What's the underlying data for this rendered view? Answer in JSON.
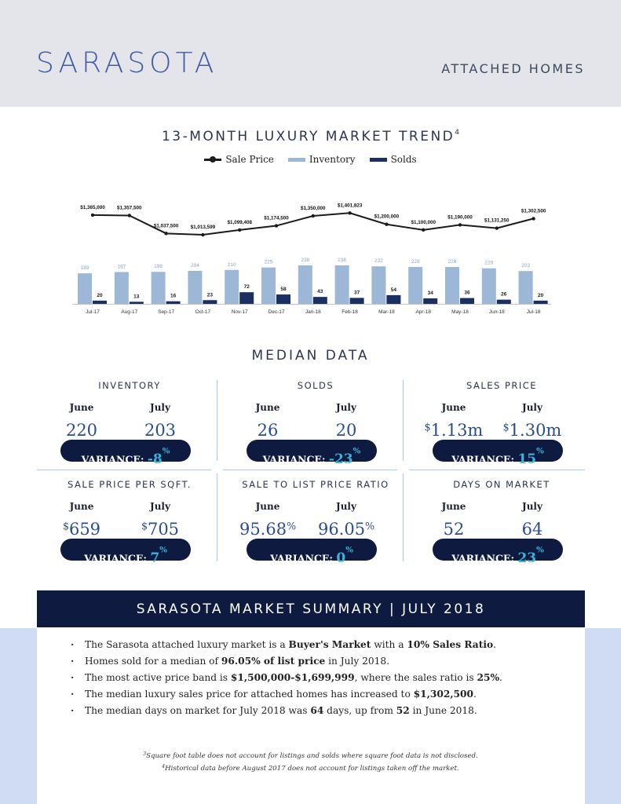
{
  "header": {
    "city": "SARASOTA",
    "segment": "ATTACHED HOMES"
  },
  "trend": {
    "title": "13-MONTH LUXURY MARKET TREND",
    "title_note": "4",
    "legend": {
      "sale_price": "Sale Price",
      "inventory": "Inventory",
      "solds": "Solds"
    }
  },
  "chart_data": {
    "type": "bar",
    "categories": [
      "Jul-17",
      "Aug-17",
      "Sep-17",
      "Oct-17",
      "Nov-17",
      "Dec-17",
      "Jan-18",
      "Feb-18",
      "Mar-18",
      "Apr-18",
      "May-18",
      "Jun-18",
      "Jul-18"
    ],
    "series": [
      {
        "name": "Inventory",
        "type": "bar",
        "values": [
          189,
          197,
          198,
          204,
          210,
          225,
          238,
          238,
          232,
          228,
          228,
          220,
          203
        ]
      },
      {
        "name": "Solds",
        "type": "bar",
        "values": [
          20,
          13,
          16,
          23,
          72,
          58,
          43,
          37,
          54,
          34,
          36,
          26,
          20
        ]
      },
      {
        "name": "Sale Price",
        "type": "line",
        "values": [
          1365000,
          1357500,
          1037500,
          1013599,
          1099408,
          1174500,
          1350000,
          1401823,
          1200000,
          1100000,
          1190000,
          1131250,
          1302500
        ]
      }
    ],
    "price_labels": [
      "$1,365,000",
      "$1,357,500",
      "$1,037,500",
      "$1,013,599",
      "$1,099,408",
      "$1,174,500",
      "$1,350,000",
      "$1,401,823",
      "$1,200,000",
      "$1,100,000",
      "$1,190,000",
      "$1,131,250",
      "$1,302,500"
    ],
    "colors": {
      "inventory": "#9cb8d6",
      "solds": "#1c2f63",
      "sale_price": "#1b1b1b"
    },
    "grid": false,
    "legend_position": "top-center"
  },
  "median": {
    "title": "MEDIAN DATA",
    "june_label": "June",
    "july_label": "July",
    "variance_label": "VARIANCE:",
    "cards": [
      {
        "title": "INVENTORY",
        "june_prefix": "",
        "june": "220",
        "july_prefix": "",
        "july": "203",
        "variance": "-8",
        "variance_unit": "%"
      },
      {
        "title": "SOLDS",
        "june_prefix": "",
        "june": "26",
        "july_prefix": "",
        "july": "20",
        "variance": "-23",
        "variance_unit": "%"
      },
      {
        "title": "SALES PRICE",
        "june_prefix": "$",
        "june": "1.13m",
        "july_prefix": "$",
        "july": "1.30m",
        "variance": "15",
        "variance_unit": "%"
      },
      {
        "title": "SALE PRICE PER SQFT.",
        "june_prefix": "$",
        "june": "659",
        "july_prefix": "$",
        "july": "705",
        "variance": "7",
        "variance_unit": "%"
      },
      {
        "title": "SALE TO LIST PRICE RATIO",
        "june_prefix": "",
        "june": "95.68",
        "june_suffix": "%",
        "july_prefix": "",
        "july": "96.05",
        "july_suffix": "%",
        "variance": "0",
        "variance_unit": "%"
      },
      {
        "title": "DAYS ON MARKET",
        "june_prefix": "",
        "june": "52",
        "july_prefix": "",
        "july": "64",
        "variance": "23",
        "variance_unit": "%"
      }
    ]
  },
  "summary": {
    "title": "SARASOTA MARKET SUMMARY | JULY 2018",
    "b1_pre": "The Sarasota attached luxury market is a ",
    "b1_bold1": "Buyer's Market",
    "b1_mid": " with a ",
    "b1_bold2": "10% Sales Ratio",
    "b1_post": ".",
    "b2_pre": "Homes sold for a median of ",
    "b2_bold": "96.05% of list price",
    "b2_post": " in July 2018.",
    "b3_pre": "The most active price band is ",
    "b3_bold1": "$1,500,000-$1,699,999",
    "b3_mid": ", where the sales ratio is ",
    "b3_bold2": "25%",
    "b3_post": ".",
    "b4_pre": "The median luxury sales price for attached homes has increased to ",
    "b4_bold": "$1,302,500",
    "b4_post": ".",
    "b5_pre": "The median days on market for July 2018 was ",
    "b5_bold1": "64",
    "b5_mid": " days, up from ",
    "b5_bold2": "52",
    "b5_post": " in June 2018."
  },
  "footnotes": {
    "n3_mark": "3",
    "n3": "Square foot table does not account for listings and solds where square foot data is not disclosed.",
    "n4_mark": "4",
    "n4": "Historical data before August 2017 does not account for listings taken off the market."
  }
}
